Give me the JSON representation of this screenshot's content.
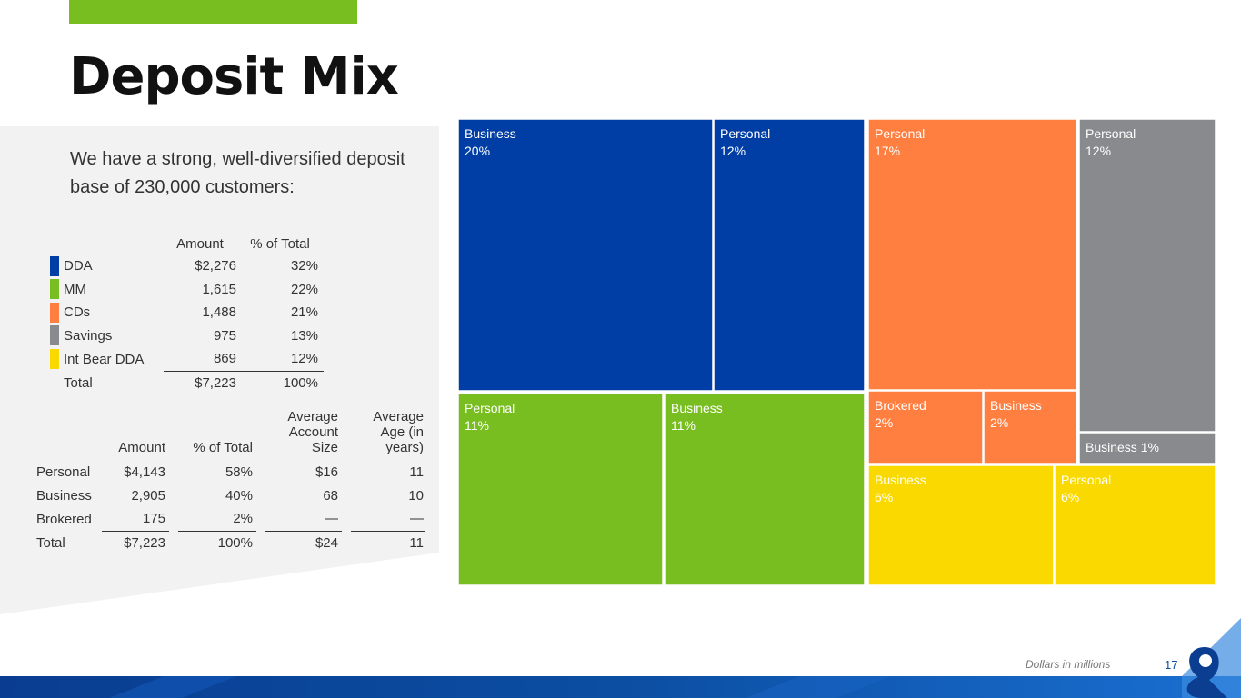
{
  "page": {
    "title": "Deposit Mix",
    "intro": "We have a strong, well-diversified deposit base of 230,000 customers:",
    "footnote": "Dollars in millions",
    "page_number": "17"
  },
  "product_table": {
    "headers": [
      "Amount",
      "% of Total"
    ],
    "rows": [
      {
        "label": "DDA",
        "amount": "$2,276",
        "pct": "32%",
        "color": "#003da5"
      },
      {
        "label": "MM",
        "amount": "1,615",
        "pct": "22%",
        "color": "#78be20"
      },
      {
        "label": "CDs",
        "amount": "1,488",
        "pct": "21%",
        "color": "#ff7f41"
      },
      {
        "label": "Savings",
        "amount": "975",
        "pct": "13%",
        "color": "#898a8d"
      },
      {
        "label": "Int Bear DDA",
        "amount": "869",
        "pct": "12%",
        "color": "#f9d900"
      }
    ],
    "total": {
      "label": "Total",
      "amount": "$7,223",
      "pct": "100%"
    }
  },
  "segment_table": {
    "headers": [
      "Amount",
      "% of Total",
      "Average Account Size",
      "Average Age (in years)"
    ],
    "rows": [
      {
        "label": "Personal",
        "amount": "$4,143",
        "pct": "58%",
        "avg_size": "$16",
        "avg_age": "11"
      },
      {
        "label": "Business",
        "amount": "2,905",
        "pct": "40%",
        "avg_size": "68",
        "avg_age": "10"
      },
      {
        "label": "Brokered",
        "amount": "175",
        "pct": "2%",
        "avg_size": "—",
        "avg_age": "—"
      }
    ],
    "total": {
      "label": "Total",
      "amount": "$7,223",
      "pct": "100%",
      "avg_size": "$24",
      "avg_age": "11"
    }
  },
  "chart_data": {
    "type": "treemap",
    "title": "",
    "groups": [
      {
        "product": "DDA",
        "color": "#003da5",
        "pct": 32,
        "cells": [
          {
            "label": "Business",
            "value": "20%",
            "pct": 20
          },
          {
            "label": "Personal",
            "value": "12%",
            "pct": 12
          }
        ]
      },
      {
        "product": "MM",
        "color": "#78be20",
        "pct": 22,
        "cells": [
          {
            "label": "Personal",
            "value": "11%",
            "pct": 11
          },
          {
            "label": "Business",
            "value": "11%",
            "pct": 11
          }
        ]
      },
      {
        "product": "CDs",
        "color": "#ff7f41",
        "pct": 21,
        "cells": [
          {
            "label": "Personal",
            "value": "17%",
            "pct": 17
          },
          {
            "label": "Brokered",
            "value": "2%",
            "pct": 2
          },
          {
            "label": "Business",
            "value": "2%",
            "pct": 2
          }
        ]
      },
      {
        "product": "Savings",
        "color": "#898a8d",
        "pct": 13,
        "cells": [
          {
            "label": "Personal",
            "value": "12%",
            "pct": 12
          },
          {
            "label": "Business 1%",
            "value": "",
            "pct": 1
          }
        ]
      },
      {
        "product": "Int Bear DDA",
        "color": "#f9d900",
        "pct": 12,
        "cells": [
          {
            "label": "Business",
            "value": "6%",
            "pct": 6
          },
          {
            "label": "Personal",
            "value": "6%",
            "pct": 6
          }
        ]
      }
    ]
  },
  "colors": {
    "accent_green": "#78be20",
    "panel_grey": "#f2f2f2",
    "brand_blue": "#0b4ea2",
    "band_dark": "#0a3d91"
  }
}
